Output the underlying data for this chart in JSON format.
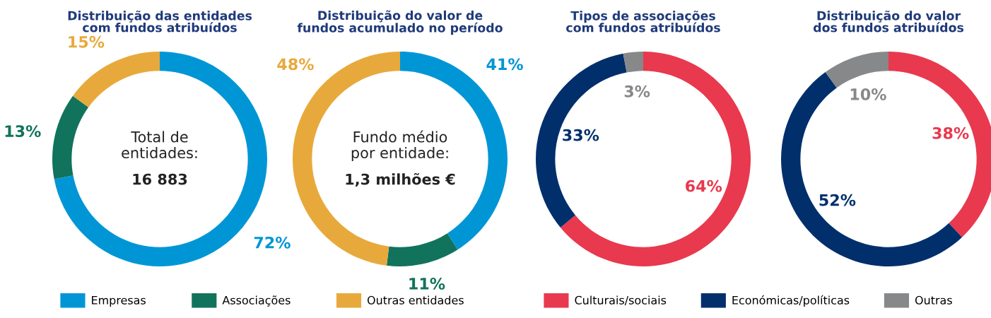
{
  "chart_data": [
    {
      "type": "donut",
      "title": "Distribuição das entidades\ncom fundos atribuídos",
      "categories": [
        "Empresas",
        "Associações",
        "Outras entidades"
      ],
      "values": [
        72,
        13,
        15
      ],
      "colors": [
        "#0096d6",
        "#12735c",
        "#e8a93c"
      ],
      "value_labels": [
        "72%",
        "13%",
        "15%"
      ],
      "annotations": [
        "Total de\nentidades:",
        "16 883"
      ],
      "legend": "bottom"
    },
    {
      "type": "donut",
      "title": "Distribuição do valor de\nfundos acumulado no período",
      "categories": [
        null,
        null,
        null
      ],
      "values": [
        41,
        11,
        48
      ],
      "colors": [
        "#0096d6",
        "#12735c",
        "#e8a93c"
      ],
      "value_labels": [
        "41%",
        "11%",
        "48%"
      ],
      "annotations": [
        "Fundo médio\npor entidade:",
        "1,3 milhões €"
      ]
    },
    {
      "type": "donut",
      "title": "Tipos de associações\ncom fundos atribuídos",
      "categories": [
        "Culturais/sociais",
        "Económicas/políticas",
        "Outras"
      ],
      "values": [
        64,
        33,
        3
      ],
      "colors": [
        "#e8394e",
        "#002f6c",
        "#87888a"
      ],
      "value_labels": [
        "64%",
        "33%",
        "3%"
      ],
      "legend": "bottom"
    },
    {
      "type": "donut",
      "title": "Distribuição do valor\ndos fundos atribuídos",
      "categories": [
        null,
        null,
        null
      ],
      "values": [
        38,
        52,
        10
      ],
      "colors": [
        "#e8394e",
        "#002f6c",
        "#87888a"
      ],
      "value_labels": [
        "38%",
        "52%",
        "10%"
      ]
    }
  ]
}
